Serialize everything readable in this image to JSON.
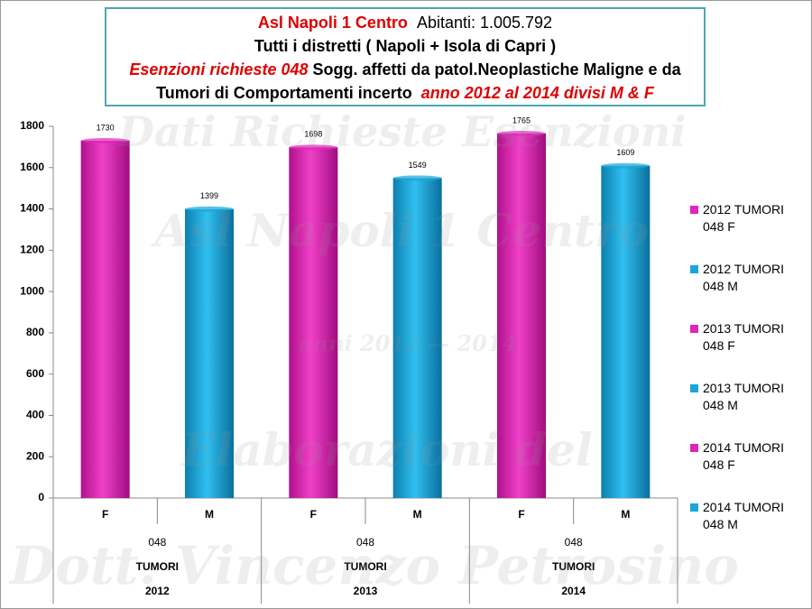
{
  "chart_data": {
    "type": "bar",
    "title_parts": [
      "Asl Napoli 1 Centro",
      "Abitanti: 1.005.792",
      "Tutti i distretti ( Napoli + Isola di Capri )",
      "Esenzioni richieste 048",
      "Sogg. affetti da patol.Neoplastiche Maligne e da",
      "Tumori di Comportamenti incerto",
      "anno 2012 al 2014 divisi M & F"
    ],
    "watermarks": [
      "Dati Richieste Esenzioni",
      "Asl Napoli 1 Centro",
      "anni 2012 — 2014",
      "Elaborazioni del",
      "Dott. Vincenzo Petrosino"
    ],
    "categories": [
      "F",
      "M",
      "F",
      "M",
      "F",
      "M"
    ],
    "groups": [
      [
        "048",
        "TUMORI",
        "2012"
      ],
      [
        "048",
        "TUMORI",
        "2013"
      ],
      [
        "048",
        "TUMORI",
        "2014"
      ]
    ],
    "series": [
      {
        "name": "2012 TUMORI 048 F",
        "color": "#e026b8",
        "values": [
          1730,
          null,
          null,
          null,
          null,
          null
        ]
      },
      {
        "name": "2012 TUMORI 048 M",
        "color": "#1aa6d9",
        "values": [
          null,
          1399,
          null,
          null,
          null,
          null
        ]
      },
      {
        "name": "2013 TUMORI 048 F",
        "color": "#e026b8",
        "values": [
          null,
          null,
          1698,
          null,
          null,
          null
        ]
      },
      {
        "name": "2013 TUMORI 048 M",
        "color": "#1aa6d9",
        "values": [
          null,
          null,
          null,
          1549,
          null,
          null
        ]
      },
      {
        "name": "2014 TUMORI 048 F",
        "color": "#e026b8",
        "values": [
          null,
          null,
          null,
          null,
          1765,
          null
        ]
      },
      {
        "name": "2014 TUMORI 048 M",
        "color": "#1aa6d9",
        "values": [
          null,
          null,
          null,
          null,
          null,
          1609
        ]
      }
    ],
    "ylim": [
      0,
      1800
    ],
    "yticks": [
      0,
      200,
      400,
      600,
      800,
      1000,
      1200,
      1400,
      1600,
      1800
    ],
    "grid": false,
    "legend": "right"
  }
}
